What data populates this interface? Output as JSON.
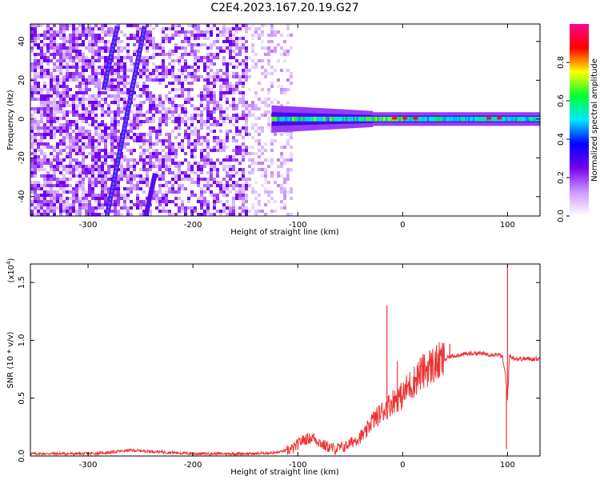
{
  "title": "C2E4.2023.167.20.19.G27",
  "chart_data": [
    {
      "type": "heatmap",
      "xlabel": "Height of straight line (km)",
      "ylabel": "Frequency (Hz)",
      "xlim": [
        -355,
        131
      ],
      "ylim": [
        -50,
        49
      ],
      "x_ticks": [
        -300,
        -200,
        -100,
        0,
        100
      ],
      "y_ticks": [
        -40,
        -20,
        0,
        20,
        40
      ],
      "colorbar": {
        "label": "Normalized spectral amplitude",
        "range": [
          0,
          1
        ],
        "ticks": [
          "0.0",
          "0.2",
          "0.4",
          "0.6",
          "0.8"
        ],
        "colors": [
          "#ffffff",
          "#cc99ff",
          "#7700ee",
          "#0000ff",
          "#00e8ff",
          "#00ff30",
          "#ffff00",
          "#ff0000",
          "#ff0090"
        ]
      },
      "features": [
        {
          "name": "diagonal streak 1",
          "x": [
            -285,
            -272
          ],
          "y": [
            15,
            48
          ],
          "amplitude": 0.35
        },
        {
          "name": "diagonal streak 2",
          "x": [
            -282,
            -246
          ],
          "y": [
            -50,
            48
          ],
          "amplitude": 0.35
        },
        {
          "name": "diagonal streak 3",
          "x": [
            -245,
            -236
          ],
          "y": [
            -50,
            -28
          ],
          "amplitude": 0.3
        },
        {
          "name": "carrier line",
          "x": [
            -125,
            131
          ],
          "y": [
            0,
            0
          ],
          "amplitude": 0.9
        }
      ]
    },
    {
      "type": "line",
      "xlabel": "Height of straight line (km)",
      "ylabel": "SNR (10 * v/v)",
      "y_multiplier": "(x10",
      "y_multiplier_exp": "4",
      "y_multiplier_close": ")",
      "xlim": [
        -355,
        131
      ],
      "ylim": [
        0,
        1.66
      ],
      "x_ticks": [
        -300,
        -200,
        -100,
        0,
        100
      ],
      "y_ticks": [
        "0.0",
        "0.5",
        "1.0",
        "1.5"
      ],
      "series": [
        {
          "color": "#ee3333",
          "x": [
            -355,
            -330,
            -300,
            -280,
            -260,
            -240,
            -220,
            -200,
            -180,
            -160,
            -140,
            -120,
            -105,
            -95,
            -85,
            -75,
            -65,
            -55,
            -45,
            -35,
            -30,
            -25,
            -20,
            -15,
            -10,
            -5,
            0,
            5,
            10,
            15,
            20,
            25,
            30,
            35,
            40,
            45,
            50,
            60,
            70,
            80,
            90,
            95,
            98,
            100,
            102,
            105,
            110,
            120,
            131
          ],
          "y": [
            0.02,
            0.02,
            0.02,
            0.03,
            0.05,
            0.04,
            0.03,
            0.02,
            0.02,
            0.02,
            0.02,
            0.03,
            0.06,
            0.14,
            0.16,
            0.09,
            0.06,
            0.08,
            0.14,
            0.2,
            0.3,
            0.33,
            0.38,
            0.42,
            0.47,
            0.5,
            0.52,
            0.6,
            0.63,
            0.7,
            0.73,
            0.77,
            0.79,
            0.81,
            0.83,
            0.86,
            0.87,
            0.88,
            0.89,
            0.88,
            0.88,
            0.86,
            0.7,
            0.5,
            0.87,
            0.85,
            0.84,
            0.84,
            0.84
          ]
        }
      ],
      "spikes": [
        {
          "x": -15,
          "y": 1.3
        },
        {
          "x": -5,
          "y": 0.82
        },
        {
          "x": 45,
          "y": 0.97
        },
        {
          "x": 99,
          "y": 0.06
        },
        {
          "x": 100,
          "y": 1.65
        }
      ]
    }
  ]
}
